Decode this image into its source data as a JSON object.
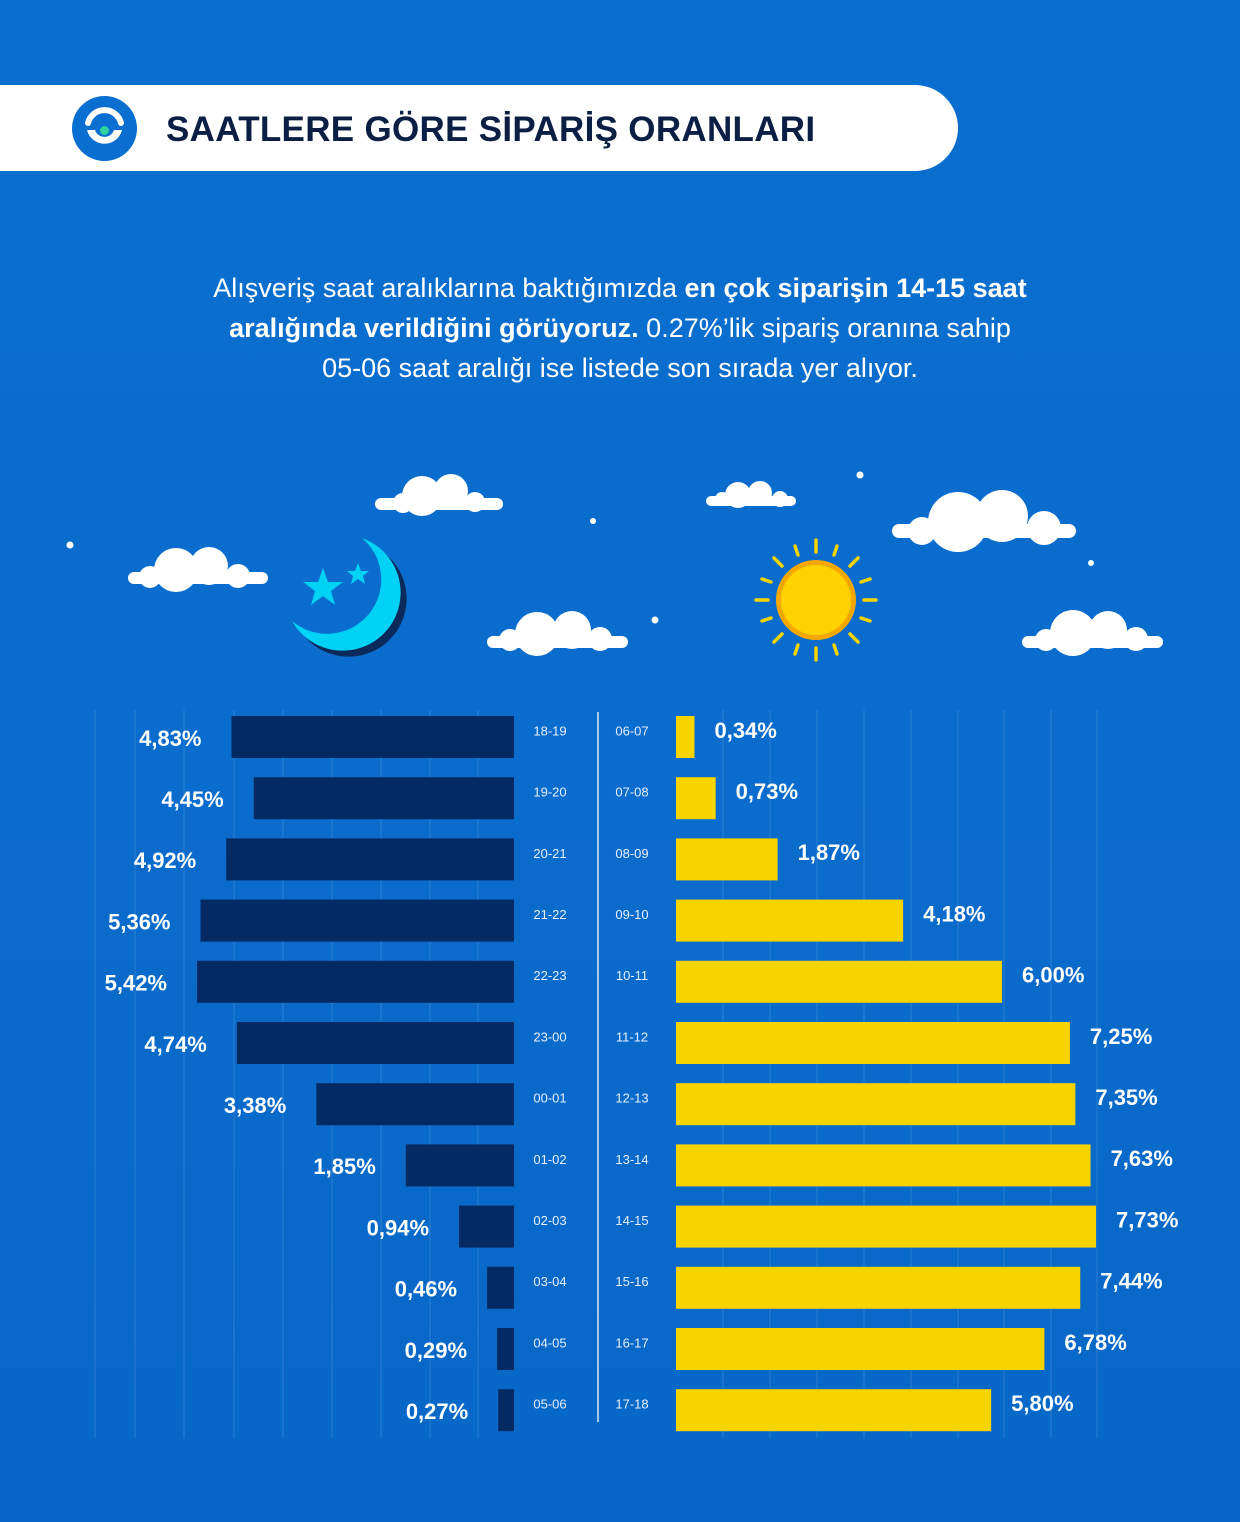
{
  "header": {
    "title": "SAATLERE GÖRE SİPARİŞ ORANLARI",
    "logo_icon": "smiley-circle-icon"
  },
  "intro": {
    "line1_regular": "Alışveriş saat aralıklarına baktığımızda ",
    "line1_bold": "en çok siparişin 14-15 saat",
    "line2_bold": "aralığında verildiğini görüyoruz.",
    "line2_regular": " 0.27%’lik sipariş oranına sahip",
    "line3_regular": "05-06 saat aralığı ise listede son sırada yer alıyor."
  },
  "colors": {
    "background": "#0a6fd0",
    "night_bar": "#042a63",
    "day_bar": "#f7d400",
    "text": "#ffffff",
    "title": "#0b1f45"
  },
  "illustration": {
    "night_icon": "moon-with-stars-icon",
    "day_icon": "sun-icon",
    "decor_icons": [
      "cloud-icon",
      "star-dot-icon"
    ]
  },
  "chart_data": {
    "type": "bar",
    "title": "SAATLERE GÖRE SİPARİŞ ORANLARI",
    "xlabel": "",
    "ylabel": "",
    "value_unit": "%",
    "series": [
      {
        "name": "night",
        "side": "left",
        "categories": [
          "18-19",
          "19-20",
          "20-21",
          "21-22",
          "22-23",
          "23-00",
          "00-01",
          "01-02",
          "02-03",
          "03-04",
          "04-05",
          "05-06"
        ],
        "values": [
          4.83,
          4.45,
          4.92,
          5.36,
          5.42,
          4.74,
          3.38,
          1.85,
          0.94,
          0.46,
          0.29,
          0.27
        ],
        "labels": [
          "4,83%",
          "4,45%",
          "4,92%",
          "5,36%",
          "5,42%",
          "4,74%",
          "3,38%",
          "1,85%",
          "0,94%",
          "0,46%",
          "0,29%",
          "0,27%"
        ]
      },
      {
        "name": "day",
        "side": "right",
        "categories": [
          "06-07",
          "07-08",
          "08-09",
          "09-10",
          "10-11",
          "11-12",
          "12-13",
          "13-14",
          "14-15",
          "15-16",
          "16-17",
          "17-18"
        ],
        "values": [
          0.34,
          0.73,
          1.87,
          4.18,
          6.0,
          7.25,
          7.35,
          7.63,
          7.73,
          7.44,
          6.78,
          5.8
        ],
        "labels": [
          "0,34%",
          "0,73%",
          "1,87%",
          "4,18%",
          "6,00%",
          "7,25%",
          "7,35%",
          "7,63%",
          "7,73%",
          "7,44%",
          "6,78%",
          "5,80%"
        ]
      }
    ]
  }
}
